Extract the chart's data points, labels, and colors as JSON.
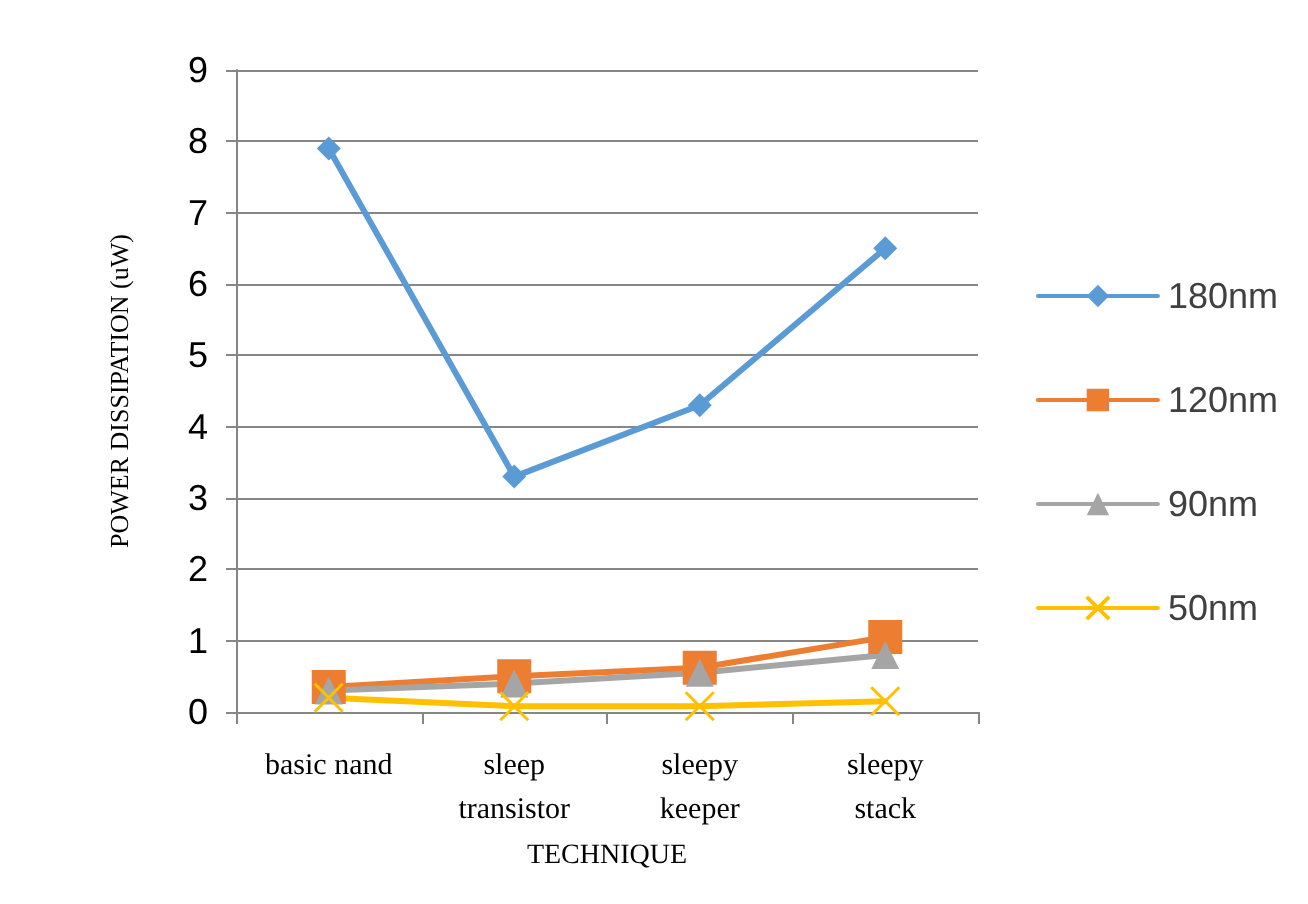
{
  "chart_data": {
    "type": "line",
    "xlabel": "TECHNIQUE",
    "ylabel": "POWER DISSIPATION (uW)",
    "categories": [
      "basic nand",
      "sleep\ntransistor",
      "sleepy\nkeeper",
      "sleepy\nstack"
    ],
    "series": [
      {
        "name": "180nm",
        "color": "#5b9bd5",
        "marker": "diamond",
        "values": [
          7.9,
          3.3,
          4.3,
          6.5
        ]
      },
      {
        "name": "120nm",
        "color": "#ed7d31",
        "marker": "square",
        "values": [
          0.35,
          0.5,
          0.62,
          1.05
        ]
      },
      {
        "name": "90nm",
        "color": "#a5a5a5",
        "marker": "triangle",
        "values": [
          0.3,
          0.4,
          0.55,
          0.8
        ]
      },
      {
        "name": "50nm",
        "color": "#ffc000",
        "marker": "cross",
        "values": [
          0.2,
          0.08,
          0.08,
          0.15
        ]
      }
    ],
    "ylim": [
      0,
      9
    ],
    "yticks": [
      0,
      1,
      2,
      3,
      4,
      5,
      6,
      7,
      8,
      9
    ],
    "grid": "y",
    "legend": "right"
  }
}
